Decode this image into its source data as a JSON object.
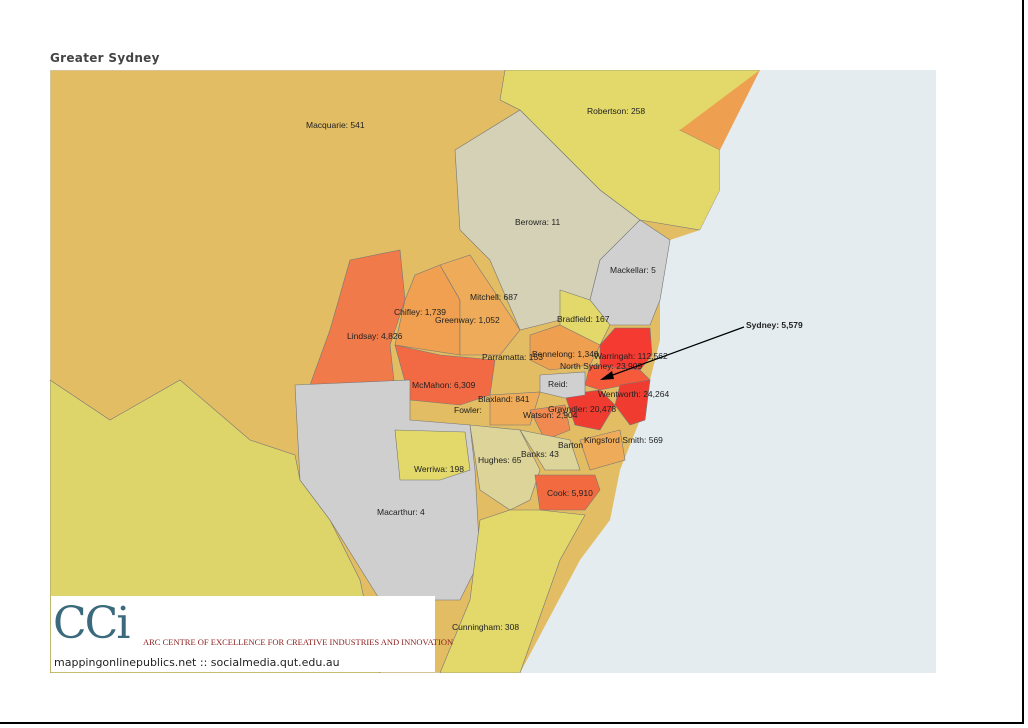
{
  "header": {
    "title": "Greater Sydney"
  },
  "map": {
    "regions": [
      {
        "label": "Macquarie: 541"
      },
      {
        "label": "Robertson: 258"
      },
      {
        "label": "Berowra: 11"
      },
      {
        "label": "Mackellar: 5"
      },
      {
        "label": "Mitchell: 687"
      },
      {
        "label": "Chifley: 1,739"
      },
      {
        "label": "Greenway: 1,052"
      },
      {
        "label": "Bradfield: 167"
      },
      {
        "label": "Lindsay: 4,826"
      },
      {
        "label": "Parramatta: 153"
      },
      {
        "label": "Bennelong: 1,348"
      },
      {
        "label": "Warringah: 112,562"
      },
      {
        "label": "North Sydney: 23,909"
      },
      {
        "label": "McMahon: 6,309"
      },
      {
        "label": "Reid:"
      },
      {
        "label": "Wentworth: 24,264"
      },
      {
        "label": "Blaxland: 841"
      },
      {
        "label": "Fowler:"
      },
      {
        "label": "Grayndler: 20,478"
      },
      {
        "label": "Watson: 2,904"
      },
      {
        "label": "Kingsford Smith: 569"
      },
      {
        "label": "Barton"
      },
      {
        "label": "Werriwa: 198"
      },
      {
        "label": "Hughes: 65"
      },
      {
        "label": "Banks: 43"
      },
      {
        "label": "Cook: 5,910"
      },
      {
        "label": "Macarthur: 4"
      },
      {
        "label": "Cunningham: 308"
      }
    ],
    "callout": "Sydney: 5,579"
  },
  "logo": {
    "mark": "CCi",
    "name": "ARC CENTRE OF EXCELLENCE FOR CREATIVE INDUSTRIES AND INNOVATION",
    "links": "mappingonlinepublics.net :: socialmedia.qut.edu.au"
  }
}
